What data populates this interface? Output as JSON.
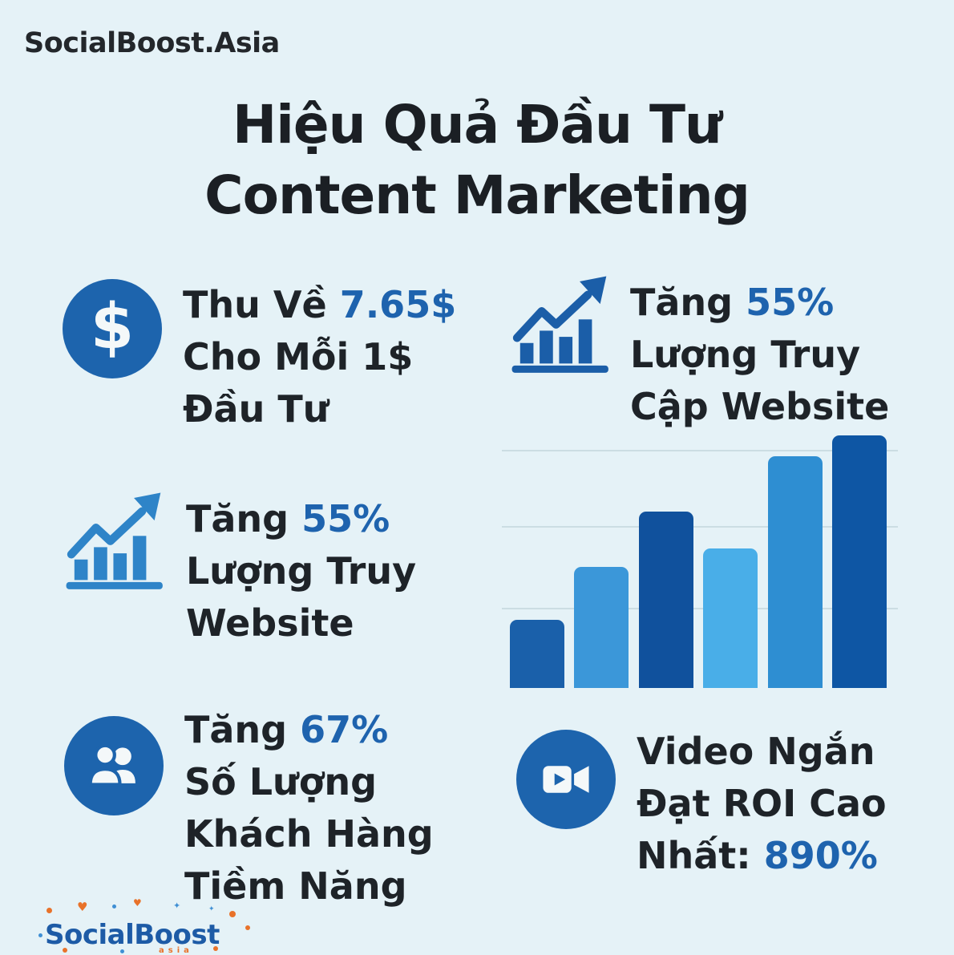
{
  "brand": {
    "header": "SocialBoost.Asia",
    "footer_name": "SocialBoost",
    "footer_sub": "asia"
  },
  "title": {
    "line1": "Hiệu Quả Đầu Tư",
    "line2": "Content Marketing"
  },
  "icons": {
    "dollar": "$"
  },
  "stats": {
    "revenue": {
      "line1_pre": "Thu Về ",
      "line1_highlight": "7.65$",
      "line2": "Cho Mỗi 1$",
      "line3": "Đầu Tư"
    },
    "traffic_left": {
      "line1_pre": "Tăng ",
      "line1_highlight": "55%",
      "line2": "Lượng Truy",
      "line3": "Website"
    },
    "leads": {
      "line1_pre": "Tăng ",
      "line1_highlight": "67%",
      "line2": "Số Lượng",
      "line3": "Khách Hàng",
      "line4": "Tiềm Năng"
    },
    "traffic_right": {
      "line1_pre": "Tăng ",
      "line1_highlight": "55%",
      "line2": "Lượng Truy",
      "line3": "Cập Website"
    },
    "video": {
      "line1": "Video Ngắn",
      "line2": "Đạt ROI Cao",
      "line3_pre": "Nhất: ",
      "line3_highlight": "890%"
    }
  },
  "chart_data": {
    "type": "bar",
    "title": "",
    "xlabel": "",
    "ylabel": "",
    "categories": [
      "",
      "",
      "",
      "",
      "",
      ""
    ],
    "values": [
      26,
      46,
      67,
      53,
      88,
      96
    ],
    "units": "relative_height_percent",
    "ylim": [
      0,
      100
    ],
    "bar_colors": [
      "#1a60aa",
      "#3b97d9",
      "#10519d",
      "#49aee8",
      "#2e8ed2",
      "#0e56a4"
    ],
    "gridlines_percent_from_bottom": [
      30,
      61,
      90
    ],
    "axis_labels_visible": false,
    "legend": "none"
  },
  "colors": {
    "background": "#e5f2f7",
    "text_dark": "#1e2328",
    "accent_blue": "#1e63ae",
    "icon_circle_blue": "#1d64ad",
    "chart_icon_left": "#2e84c8",
    "chart_icon_right": "#1b5ea8",
    "logo_blue": "#1d5ba6",
    "logo_orange": "#e8722a",
    "gridline": "#cbdde3"
  }
}
